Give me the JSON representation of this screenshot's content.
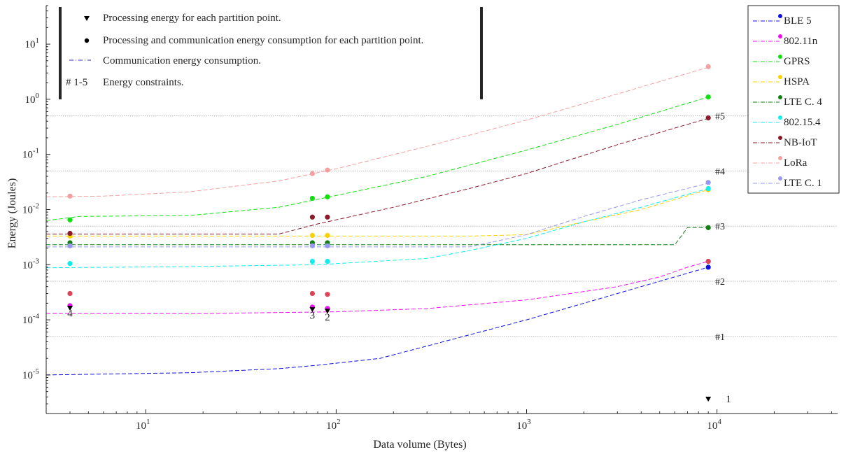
{
  "chart_data": {
    "type": "line",
    "xlabel": "Data volume (Bytes)",
    "ylabel": "Energy (Joules)",
    "xscale": "log",
    "yscale": "log",
    "xlim": [
      3,
      43000
    ],
    "ylim": [
      2e-06,
      50
    ],
    "grid": "horizontal dotted lines at energy constraint levels",
    "x_ticks": [
      {
        "value": 10,
        "base": "10",
        "exp": "1"
      },
      {
        "value": 100,
        "base": "10",
        "exp": "2"
      },
      {
        "value": 1000,
        "base": "10",
        "exp": "3"
      },
      {
        "value": 10000,
        "base": "10",
        "exp": "4"
      }
    ],
    "y_ticks": [
      {
        "value": 10,
        "base": "10",
        "exp": "1"
      },
      {
        "value": 1,
        "base": "10",
        "exp": "0"
      },
      {
        "value": 0.1,
        "base": "10",
        "exp": "-1"
      },
      {
        "value": 0.01,
        "base": "10",
        "exp": "-2"
      },
      {
        "value": 0.001,
        "base": "10",
        "exp": "-3"
      },
      {
        "value": 0.0001,
        "base": "10",
        "exp": "-4"
      },
      {
        "value": 1e-05,
        "base": "10",
        "exp": "-5"
      }
    ],
    "constraints": [
      {
        "label": "#1",
        "y": 5e-05
      },
      {
        "label": "#2",
        "y": 0.0005
      },
      {
        "label": "#3",
        "y": 0.005
      },
      {
        "label": "#4",
        "y": 0.05
      },
      {
        "label": "#5",
        "y": 0.5
      }
    ],
    "series": [
      {
        "name": "BLE 5",
        "color": "#1010e0",
        "dash": "6,3",
        "line": [
          [
            3,
            1e-05
          ],
          [
            17,
            1.1e-05
          ],
          [
            50,
            1.3e-05
          ],
          [
            80,
            1.5e-05
          ],
          [
            170,
            2e-05
          ],
          [
            1000,
            0.0001
          ],
          [
            5000,
            0.0005
          ],
          [
            9000,
            0.0009
          ]
        ],
        "points": [
          [
            4,
            0.00018
          ],
          [
            75,
            0.00017
          ],
          [
            90,
            0.00016
          ],
          [
            9000,
            0.0009
          ]
        ]
      },
      {
        "name": "802.11n",
        "color": "#ee10ee",
        "dash": "6,3",
        "line": [
          [
            3,
            0.00013
          ],
          [
            20,
            0.00013
          ],
          [
            100,
            0.00014
          ],
          [
            300,
            0.00016
          ],
          [
            1000,
            0.00023
          ],
          [
            3000,
            0.0004
          ],
          [
            5000,
            0.0006
          ],
          [
            7000,
            0.0009
          ],
          [
            9000,
            0.00115
          ]
        ],
        "points": [
          [
            4,
            0.00018
          ],
          [
            75,
            0.00017
          ],
          [
            90,
            0.00016
          ],
          [
            9000,
            0.00115
          ]
        ]
      },
      {
        "name": "GPRS",
        "color": "#10e010",
        "dash": "6,3",
        "line": [
          [
            3,
            0.0063
          ],
          [
            4.5,
            0.0075
          ],
          [
            17,
            0.0078
          ],
          [
            50,
            0.011
          ],
          [
            100,
            0.018
          ],
          [
            300,
            0.04
          ],
          [
            1000,
            0.12
          ],
          [
            3000,
            0.35
          ],
          [
            9000,
            1.1
          ]
        ],
        "points": [
          [
            4,
            0.0065
          ],
          [
            75,
            0.016
          ],
          [
            90,
            0.017
          ],
          [
            9000,
            1.1
          ]
        ]
      },
      {
        "name": "HSPA",
        "color": "#ffd000",
        "dash": "6,3",
        "line": [
          [
            3,
            0.0033
          ],
          [
            500,
            0.0033
          ],
          [
            1000,
            0.0035
          ],
          [
            2000,
            0.006
          ],
          [
            4000,
            0.01
          ],
          [
            9000,
            0.023
          ]
        ],
        "points": [
          [
            4,
            0.0033
          ],
          [
            75,
            0.0034
          ],
          [
            90,
            0.0034
          ],
          [
            9000,
            0.023
          ]
        ]
      },
      {
        "name": "LTE C. 4",
        "color": "#128012",
        "dash": "6,3",
        "line": [
          [
            3,
            0.0023
          ],
          [
            6000,
            0.0023
          ],
          [
            7000,
            0.0047
          ],
          [
            9000,
            0.0047
          ]
        ],
        "points": [
          [
            4,
            0.0025
          ],
          [
            75,
            0.0025
          ],
          [
            90,
            0.0025
          ],
          [
            9000,
            0.0047
          ]
        ]
      },
      {
        "name": "802.15.4",
        "color": "#10eeee",
        "dash": "6,3",
        "line": [
          [
            3,
            0.00088
          ],
          [
            15,
            0.00092
          ],
          [
            80,
            0.001
          ],
          [
            300,
            0.0013
          ],
          [
            500,
            0.0018
          ],
          [
            1000,
            0.003
          ],
          [
            2000,
            0.006
          ],
          [
            4000,
            0.011
          ],
          [
            9000,
            0.024
          ]
        ],
        "points": [
          [
            4,
            0.00105
          ],
          [
            75,
            0.00115
          ],
          [
            90,
            0.00115
          ],
          [
            9000,
            0.024
          ]
        ]
      },
      {
        "name": "NB-IoT",
        "color": "#8b1a2a",
        "dash": "6,3",
        "line": [
          [
            3,
            0.0036
          ],
          [
            50,
            0.0036
          ],
          [
            80,
            0.0055
          ],
          [
            200,
            0.011
          ],
          [
            500,
            0.024
          ],
          [
            1000,
            0.045
          ],
          [
            3000,
            0.15
          ],
          [
            9000,
            0.45
          ]
        ],
        "points": [
          [
            4,
            0.0037
          ],
          [
            75,
            0.0073
          ],
          [
            90,
            0.0073
          ],
          [
            9000,
            0.46
          ]
        ]
      },
      {
        "name": "LoRa",
        "color": "#f4a0a0",
        "dash": "6,3",
        "line": [
          [
            3,
            0.017
          ],
          [
            6,
            0.0175
          ],
          [
            17,
            0.021
          ],
          [
            50,
            0.033
          ],
          [
            100,
            0.055
          ],
          [
            300,
            0.14
          ],
          [
            1000,
            0.42
          ],
          [
            3000,
            1.25
          ],
          [
            9000,
            3.8
          ]
        ],
        "points": [
          [
            4,
            0.0175
          ],
          [
            75,
            0.045
          ],
          [
            90,
            0.052
          ],
          [
            9000,
            3.9
          ]
        ]
      },
      {
        "name": "LTE C. 1",
        "color": "#9898ee",
        "dash": "6,3",
        "line": [
          [
            3,
            0.0021
          ],
          [
            500,
            0.0021
          ],
          [
            1000,
            0.0035
          ],
          [
            2000,
            0.0075
          ],
          [
            4000,
            0.015
          ],
          [
            9000,
            0.03
          ]
        ],
        "points": [
          [
            4,
            0.0022
          ],
          [
            75,
            0.0022
          ],
          [
            90,
            0.0022
          ],
          [
            9000,
            0.031
          ]
        ]
      }
    ],
    "total_energy_points": {
      "color": "#dd4455",
      "points": [
        [
          4,
          0.0003
        ],
        [
          75,
          0.0003
        ],
        [
          90,
          0.00029
        ],
        [
          9000,
          0.00115
        ]
      ]
    },
    "processing_points": [
      [
        4,
        0.000165
      ],
      [
        75,
        0.000155
      ],
      [
        90,
        0.000145
      ],
      [
        9000,
        3.7e-06
      ]
    ],
    "partition_labels": [
      {
        "text": "4",
        "x": 4,
        "y": 0.000115
      },
      {
        "text": "3",
        "x": 75,
        "y": 0.000105
      },
      {
        "text": "2",
        "x": 90,
        "y": 9.8e-05
      },
      {
        "text": "1",
        "x": 11500,
        "y": 3.2e-06
      }
    ],
    "top_legend": [
      {
        "key": "processing",
        "text": "Processing energy for each partition point."
      },
      {
        "key": "total",
        "text": "Processing and communication energy consumption for each partition point."
      },
      {
        "key": "comm",
        "text": "Communication energy consumption."
      },
      {
        "key": "constraints",
        "symbol": "# 1-5",
        "text": "Energy constraints."
      }
    ]
  }
}
